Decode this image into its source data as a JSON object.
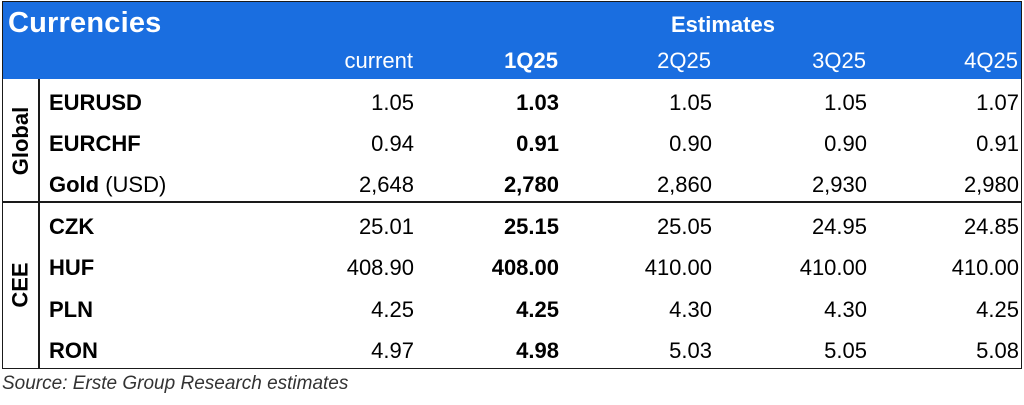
{
  "table": {
    "title": "Currencies",
    "estimates_label": "Estimates",
    "columns": [
      "current",
      "1Q25",
      "2Q25",
      "3Q25",
      "4Q25"
    ],
    "groups": [
      {
        "label": "Global",
        "rows": [
          {
            "name": "EURUSD",
            "unit": "",
            "values": [
              "1.05",
              "1.03",
              "1.05",
              "1.05",
              "1.07"
            ]
          },
          {
            "name": "EURCHF",
            "unit": "",
            "values": [
              "0.94",
              "0.91",
              "0.90",
              "0.90",
              "0.91"
            ]
          },
          {
            "name": "Gold",
            "unit": " (USD)",
            "values": [
              "2,648",
              "2,780",
              "2,860",
              "2,930",
              "2,980"
            ]
          }
        ]
      },
      {
        "label": "CEE",
        "rows": [
          {
            "name": "CZK",
            "unit": "",
            "values": [
              "25.01",
              "25.15",
              "25.05",
              "24.95",
              "24.85"
            ]
          },
          {
            "name": "HUF",
            "unit": "",
            "values": [
              "408.90",
              "408.00",
              "410.00",
              "410.00",
              "410.00"
            ]
          },
          {
            "name": "PLN",
            "unit": "",
            "values": [
              "4.25",
              "4.25",
              "4.30",
              "4.30",
              "4.25"
            ]
          },
          {
            "name": "RON",
            "unit": "",
            "values": [
              "4.97",
              "4.98",
              "5.03",
              "5.05",
              "5.08"
            ]
          }
        ]
      }
    ]
  },
  "source": "Source: Erste Group Research estimates",
  "colors": {
    "header_bg": "#1a6ee0",
    "header_text": "#ffffff",
    "border": "#1a1a1a"
  }
}
